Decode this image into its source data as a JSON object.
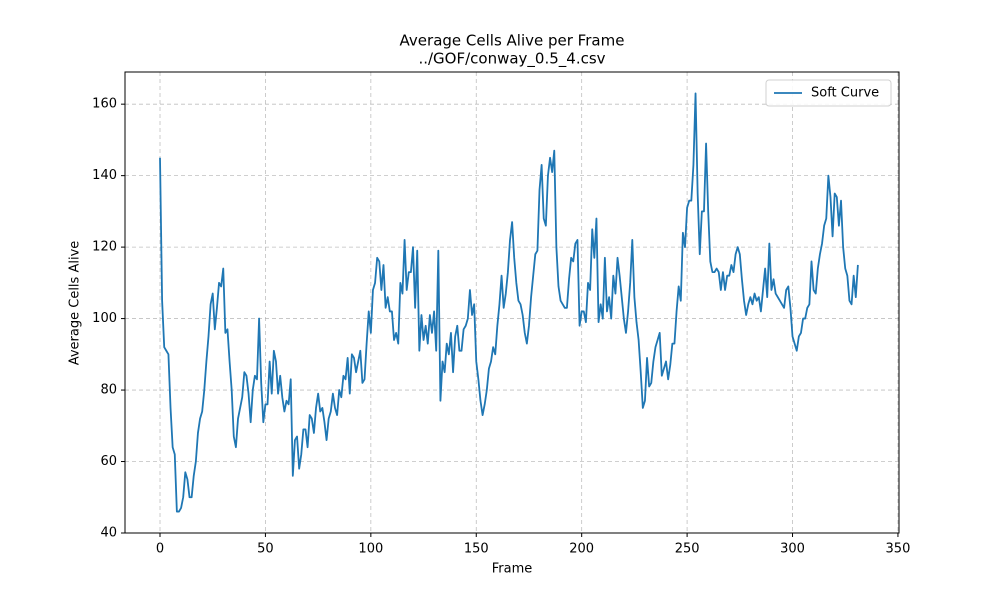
{
  "chart_data": {
    "type": "line",
    "title": "Average Cells Alive per Frame",
    "subtitle": "../GOF/conway_0.5_4.csv",
    "x_label": "Frame",
    "y_label": "Average Cells Alive",
    "xlim": [
      -16.6,
      350.5
    ],
    "xticks": [
      0,
      50,
      100,
      150,
      200,
      250,
      300,
      350
    ],
    "ylim": [
      40,
      169
    ],
    "yticks": [
      40,
      60,
      80,
      100,
      120,
      140,
      160
    ],
    "grid": true,
    "legend": "upper right",
    "x": [
      0,
      1,
      2,
      3,
      4,
      5,
      6,
      7,
      8,
      9,
      10,
      11,
      12,
      13,
      14,
      15,
      16,
      17,
      18,
      19,
      20,
      21,
      22,
      23,
      24,
      25,
      26,
      27,
      28,
      29,
      30,
      31,
      32,
      33,
      34,
      35,
      36,
      37,
      38,
      39,
      40,
      41,
      42,
      43,
      44,
      45,
      46,
      47,
      48,
      49,
      50,
      51,
      52,
      53,
      54,
      55,
      56,
      57,
      58,
      59,
      60,
      61,
      62,
      63,
      64,
      65,
      66,
      67,
      68,
      69,
      70,
      71,
      72,
      73,
      74,
      75,
      76,
      77,
      78,
      79,
      80,
      81,
      82,
      83,
      84,
      85,
      86,
      87,
      88,
      89,
      90,
      91,
      92,
      93,
      94,
      95,
      96,
      97,
      98,
      99,
      100,
      101,
      102,
      103,
      104,
      105,
      106,
      107,
      108,
      109,
      110,
      111,
      112,
      113,
      114,
      115,
      116,
      117,
      118,
      119,
      120,
      121,
      122,
      123,
      124,
      125,
      126,
      127,
      128,
      129,
      130,
      131,
      132,
      133,
      134,
      135,
      136,
      137,
      138,
      139,
      140,
      141,
      142,
      143,
      144,
      145,
      146,
      147,
      148,
      149,
      150,
      151,
      152,
      153,
      154,
      155,
      156,
      157,
      158,
      159,
      160,
      161,
      162,
      163,
      164,
      165,
      166,
      167,
      168,
      169,
      170,
      171,
      172,
      173,
      174,
      175,
      176,
      177,
      178,
      179,
      180,
      181,
      182,
      183,
      184,
      185,
      186,
      187,
      188,
      189,
      190,
      191,
      192,
      193,
      194,
      195,
      196,
      197,
      198,
      199,
      200,
      201,
      202,
      203,
      204,
      205,
      206,
      207,
      208,
      209,
      210,
      211,
      212,
      213,
      214,
      215,
      216,
      217,
      218,
      219,
      220,
      221,
      222,
      223,
      224,
      225,
      226,
      227,
      228,
      229,
      230,
      231,
      232,
      233,
      234,
      235,
      236,
      237,
      238,
      239,
      240,
      241,
      242,
      243,
      244,
      245,
      246,
      247,
      248,
      249,
      250,
      251,
      252,
      253,
      254,
      255,
      256,
      257,
      258,
      259,
      260,
      261,
      262,
      263,
      264,
      265,
      266,
      267,
      268,
      269,
      270,
      271,
      272,
      273,
      274,
      275,
      276,
      277,
      278,
      279,
      280,
      281,
      282,
      283,
      284,
      285,
      286,
      287,
      288,
      289,
      290,
      291,
      292,
      293,
      294,
      295,
      296,
      297,
      298,
      299,
      300,
      301,
      302,
      303,
      304,
      305,
      306,
      307,
      308,
      309,
      310,
      311,
      312,
      313,
      314,
      315,
      316,
      317,
      318,
      319,
      320,
      321,
      322,
      323,
      324,
      325,
      326,
      327,
      328,
      329,
      330,
      331
    ],
    "series": [
      {
        "name": "Soft Curve",
        "color": "#1f77b4",
        "values": [
          145,
          105,
          92,
          91,
          90,
          75,
          64,
          62,
          46,
          46,
          47,
          50,
          57,
          55,
          50,
          50,
          56,
          60,
          68,
          72,
          74,
          80,
          88,
          95,
          104,
          107,
          97,
          103,
          110,
          109,
          114,
          96,
          97,
          88,
          80,
          67,
          64,
          72,
          75,
          78,
          85,
          84,
          79,
          71,
          80,
          84,
          83,
          100,
          82,
          71,
          76,
          76,
          88,
          79,
          91,
          88,
          79,
          84,
          78,
          74,
          77,
          76,
          83,
          56,
          66,
          67,
          58,
          62,
          69,
          69,
          64,
          73,
          72,
          68,
          75,
          79,
          74,
          75,
          71,
          66,
          72,
          74,
          79,
          75,
          73,
          80,
          78,
          84,
          83,
          89,
          79,
          90,
          89,
          85,
          88,
          91,
          82,
          83,
          93,
          102,
          96,
          108,
          110,
          117,
          116,
          108,
          115,
          103,
          106,
          102,
          102,
          94,
          96,
          93,
          110,
          107,
          122,
          108,
          113,
          113,
          120,
          103,
          119,
          91,
          101,
          94,
          98,
          93,
          101,
          96,
          102,
          91,
          119,
          77,
          88,
          85,
          93,
          90,
          96,
          85,
          95,
          98,
          91,
          91,
          97,
          98,
          100,
          108,
          101,
          104,
          88,
          83,
          77,
          73,
          76,
          80,
          86,
          88,
          92,
          90,
          98,
          104,
          112,
          103,
          107,
          113,
          122,
          127,
          117,
          110,
          105,
          104,
          101,
          96,
          93,
          98,
          106,
          112,
          118,
          119,
          136,
          143,
          128,
          126,
          140,
          145,
          141,
          147,
          120,
          109,
          105,
          104,
          103,
          103,
          111,
          117,
          116,
          121,
          122,
          98,
          102,
          102,
          99,
          110,
          108,
          125,
          117,
          128,
          99,
          104,
          100,
          117,
          102,
          106,
          100,
          112,
          107,
          117,
          112,
          106,
          100,
          96,
          102,
          110,
          122,
          106,
          99,
          94,
          85,
          75,
          77,
          89,
          81,
          82,
          88,
          92,
          94,
          96,
          84,
          86,
          88,
          83,
          87,
          93,
          93,
          102,
          109,
          105,
          124,
          120,
          131,
          133,
          133,
          143,
          163,
          135,
          118,
          130,
          130,
          149,
          130,
          116,
          113,
          113,
          114,
          113,
          108,
          113,
          108,
          112,
          112,
          115,
          113,
          118,
          120,
          118,
          111,
          105,
          101,
          104,
          106,
          104,
          107,
          105,
          106,
          102,
          108,
          114,
          106,
          121,
          108,
          111,
          107,
          106,
          105,
          104,
          103,
          108,
          109,
          103,
          95,
          93,
          91,
          95,
          96,
          100,
          100,
          103,
          104,
          116,
          108,
          107,
          114,
          118,
          121,
          126,
          128,
          140,
          134,
          123,
          135,
          134,
          126,
          133,
          120,
          114,
          112,
          105,
          104,
          112,
          106,
          115
        ]
      }
    ]
  }
}
